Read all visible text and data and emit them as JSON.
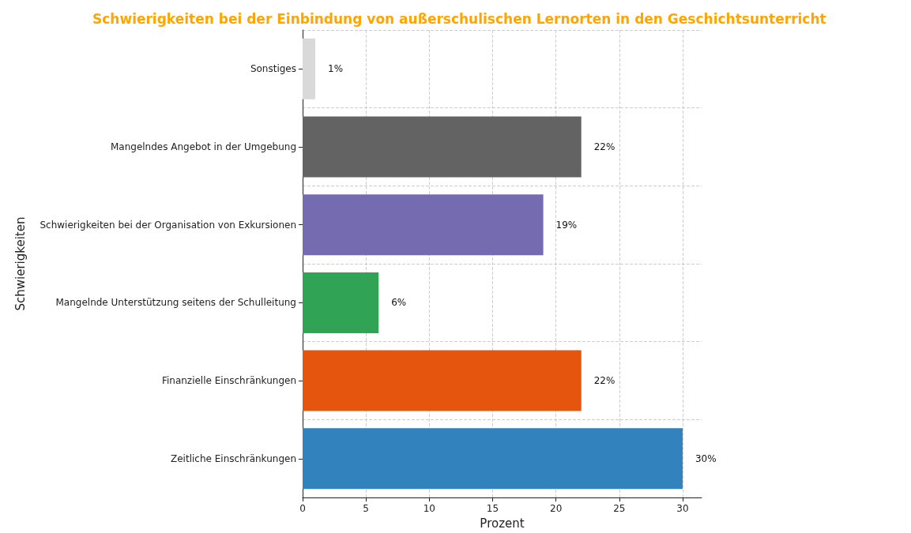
{
  "chart_data": {
    "type": "bar",
    "orientation": "horizontal",
    "title": "Schwierigkeiten bei der Einbindung von außerschulischen Lernorten in den Geschichtsunterricht",
    "xlabel": "Prozent",
    "ylabel": "Schwierigkeiten",
    "categories": [
      "Sonstiges",
      "Mangelndes Angebot in der Umgebung",
      "Schwierigkeiten bei der Organisation von Exkursionen",
      "Mangelnde Unterstützung seitens der Schulleitung",
      "Finanzielle Einschränkungen",
      "Zeitliche Einschränkungen"
    ],
    "values": [
      1,
      22,
      19,
      6,
      22,
      30
    ],
    "colors": [
      "#d9d9d9",
      "#636363",
      "#756bb1",
      "#31a354",
      "#e6550d",
      "#3182bd"
    ],
    "value_labels": [
      "1%",
      "22%",
      "19%",
      "6%",
      "22%",
      "30%"
    ],
    "xlim": [
      0,
      31.5
    ],
    "xticks": [
      0,
      5,
      10,
      15,
      20,
      25,
      30
    ],
    "grid": true
  }
}
